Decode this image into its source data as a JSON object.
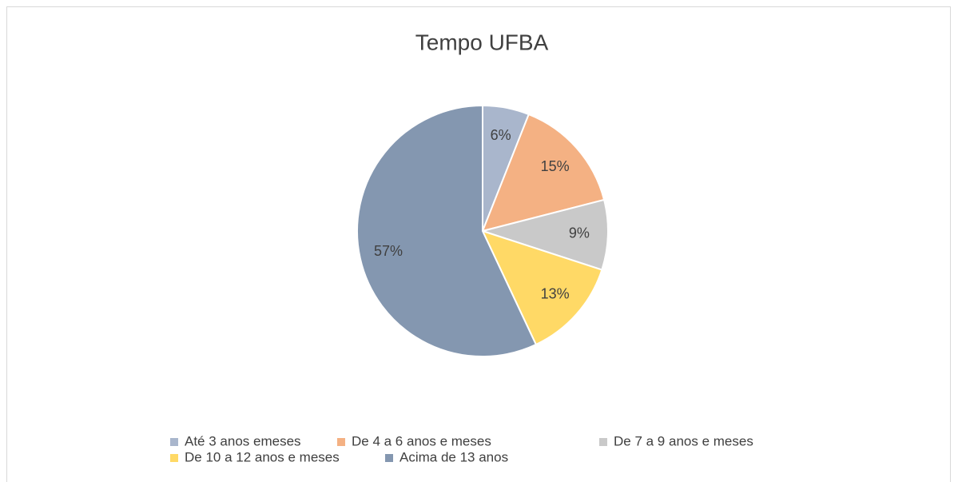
{
  "chart_data": {
    "type": "pie",
    "title": "Tempo UFBA",
    "categories": [
      "Até 3 anos emeses",
      "De 4 a 6 anos e meses",
      "De 7 a 9 anos e meses",
      "De 10 a 12 anos e meses",
      "Acima de 13 anos"
    ],
    "values": [
      6,
      15,
      9,
      13,
      57
    ],
    "value_labels": [
      "6%",
      "15%",
      "9%",
      "13%",
      "57%"
    ],
    "colors": [
      "#a9b6cc",
      "#f4b183",
      "#c9c9c9",
      "#ffd966",
      "#8497b0"
    ],
    "legend": "bottom"
  }
}
